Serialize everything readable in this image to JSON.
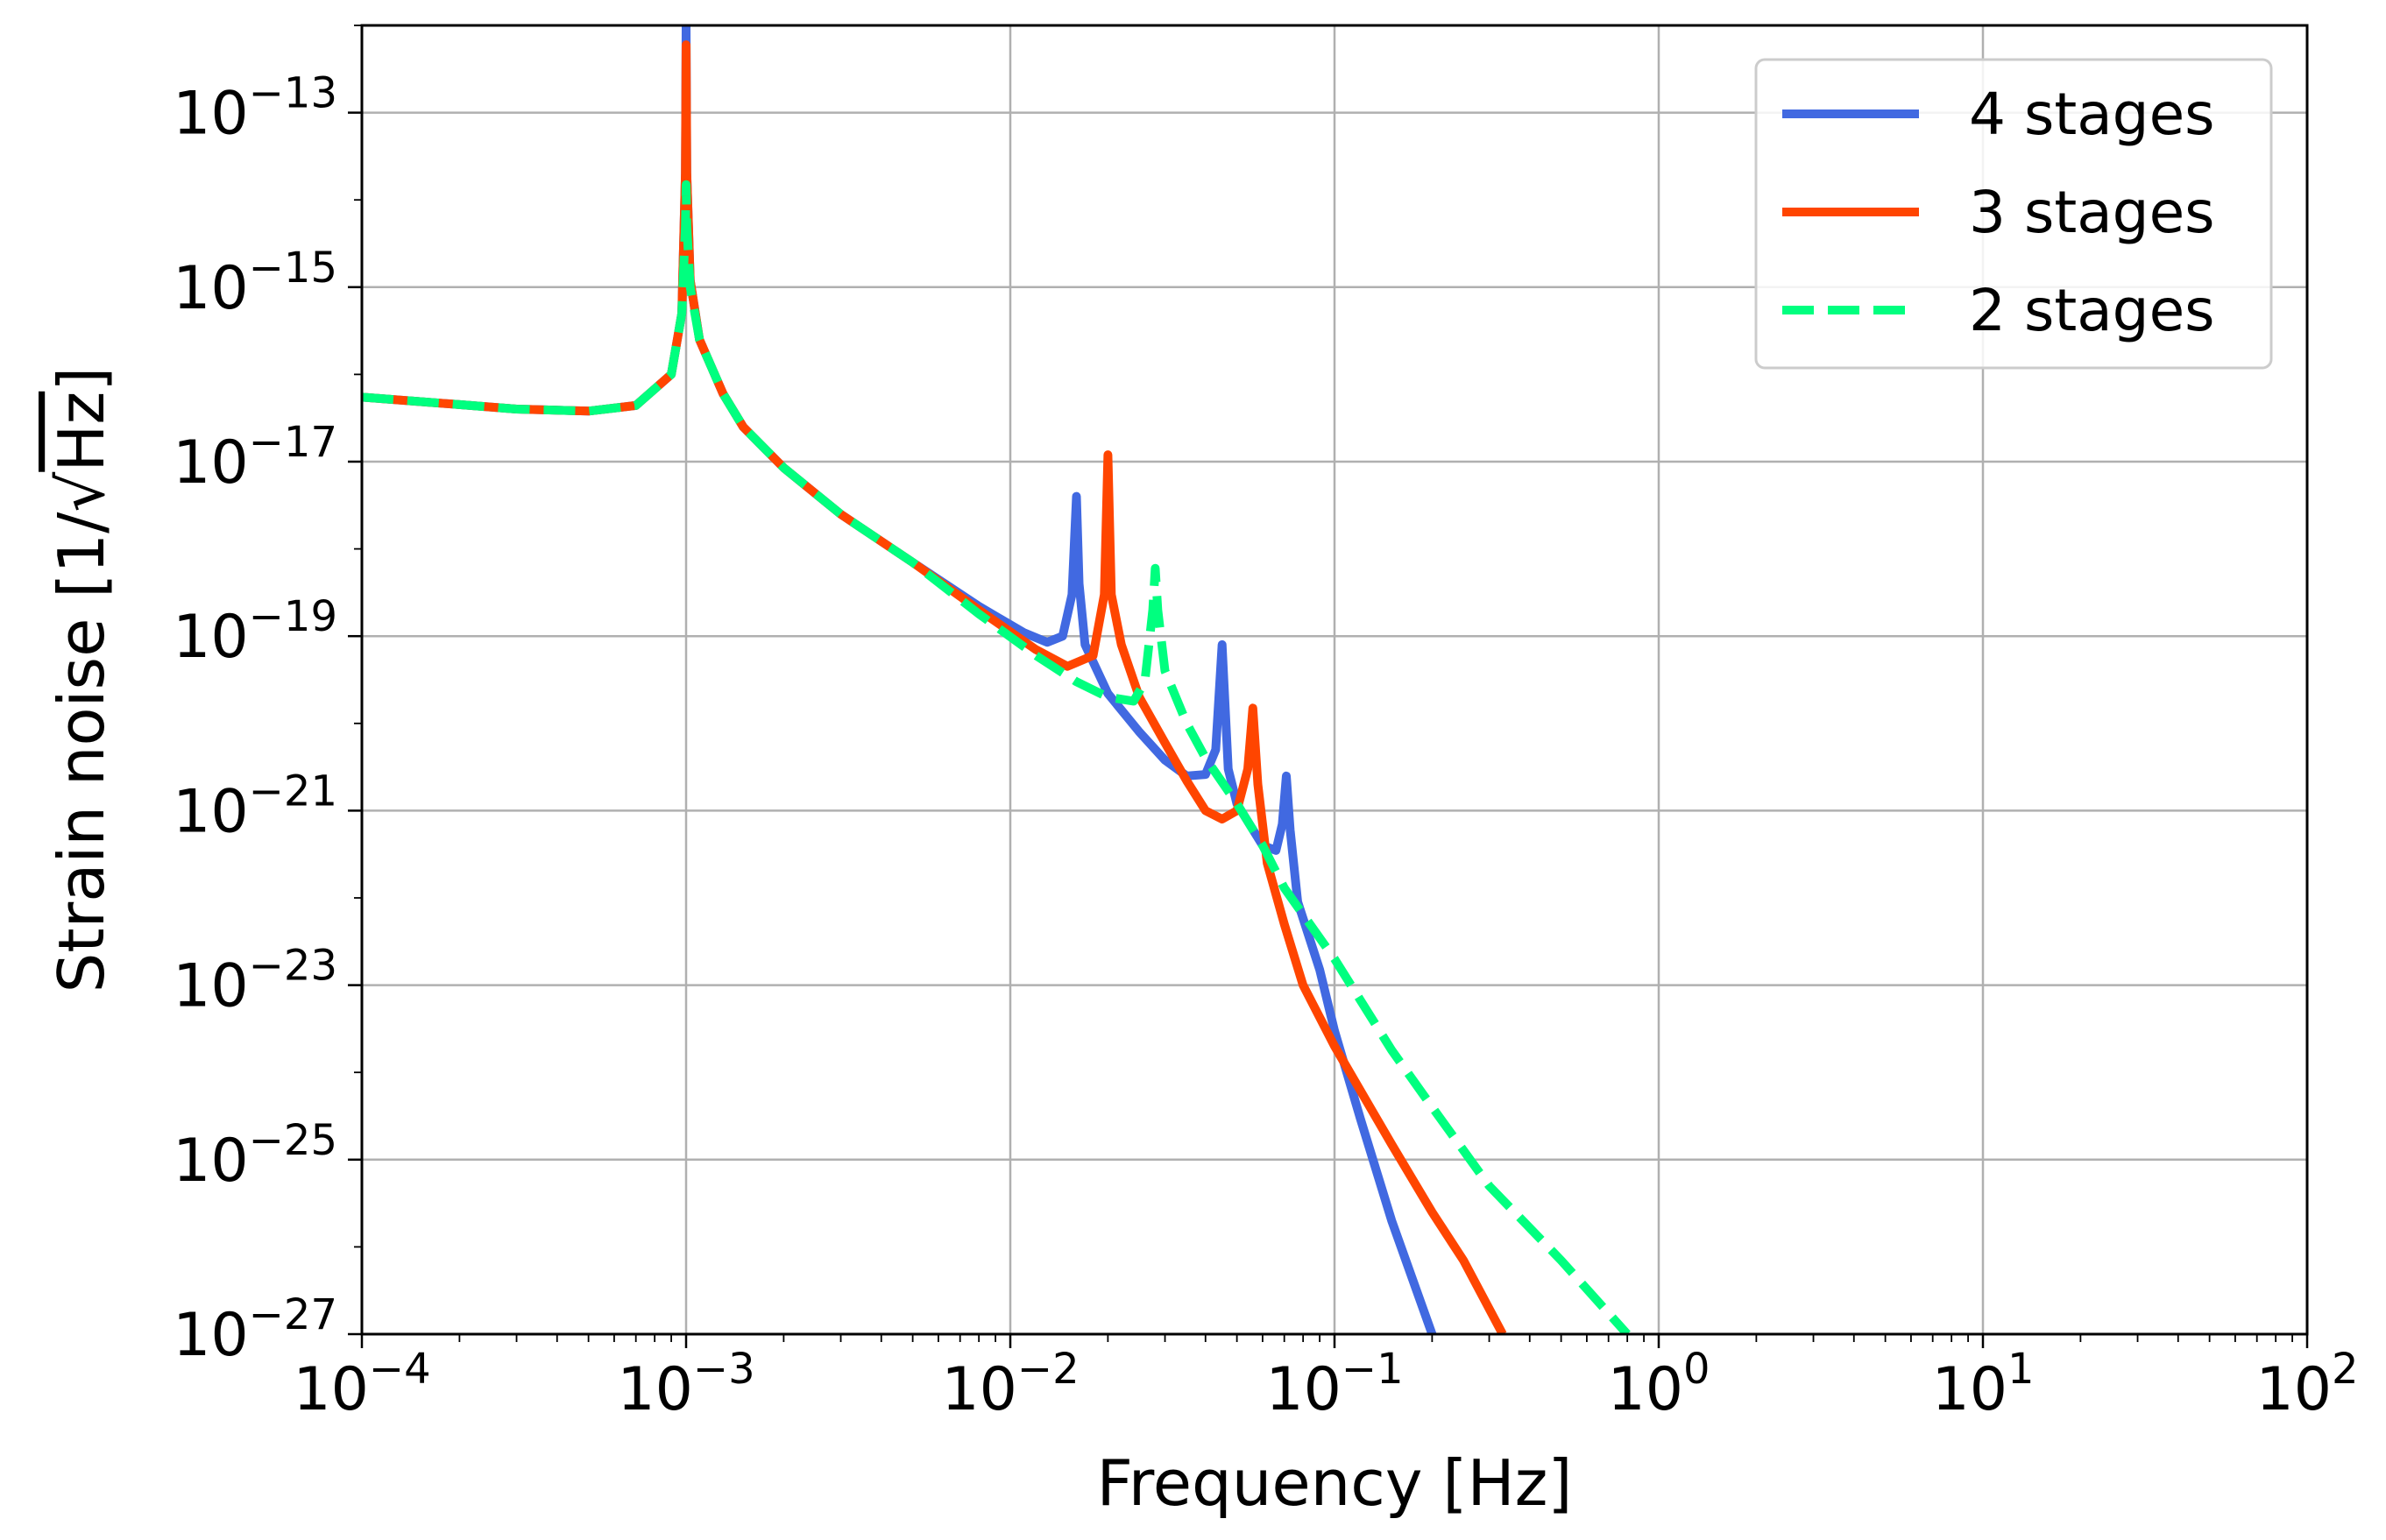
{
  "chart_data": {
    "type": "line",
    "xlabel": "Frequency [Hz]",
    "ylabel_prefix": "Strain noise [1/",
    "ylabel_radicand": "Hz",
    "ylabel_suffix": "]",
    "xscale": "log",
    "yscale": "log",
    "xlim": [
      0.0001,
      100
    ],
    "ylim": [
      1e-27,
      1e-12
    ],
    "grid": true,
    "legend_position": "top-right",
    "x_ticks": [
      {
        "base": "10",
        "exp": "−4",
        "value": 0.0001
      },
      {
        "base": "10",
        "exp": "−3",
        "value": 0.001
      },
      {
        "base": "10",
        "exp": "−2",
        "value": 0.01
      },
      {
        "base": "10",
        "exp": "−1",
        "value": 0.1
      },
      {
        "base": "10",
        "exp": "0",
        "value": 1
      },
      {
        "base": "10",
        "exp": "1",
        "value": 10
      },
      {
        "base": "10",
        "exp": "2",
        "value": 100
      }
    ],
    "y_ticks": [
      {
        "base": "10",
        "exp": "−13",
        "value": 1e-13
      },
      {
        "base": "10",
        "exp": "−15",
        "value": 1e-15
      },
      {
        "base": "10",
        "exp": "−17",
        "value": 1e-17
      },
      {
        "base": "10",
        "exp": "−19",
        "value": 1e-19
      },
      {
        "base": "10",
        "exp": "−21",
        "value": 1e-21
      },
      {
        "base": "10",
        "exp": "−23",
        "value": 1e-23
      },
      {
        "base": "10",
        "exp": "−25",
        "value": 1e-25
      },
      {
        "base": "10",
        "exp": "−27",
        "value": 1e-27
      }
    ],
    "series": [
      {
        "name": "4 stages",
        "color": "#4169e1",
        "dash": "solid",
        "points": [
          [
            0.0001,
            5.5e-17
          ],
          [
            0.0002,
            4.5e-17
          ],
          [
            0.0003,
            4e-17
          ],
          [
            0.0005,
            3.8e-17
          ],
          [
            0.0007,
            4.4e-17
          ],
          [
            0.0009,
            1e-16
          ],
          [
            0.00097,
            5e-16
          ],
          [
            0.000995,
            2e-14
          ],
          [
            0.001,
            1e-12
          ],
          [
            0.001005,
            2e-14
          ],
          [
            0.00103,
            1.2e-15
          ],
          [
            0.0011,
            2.5e-16
          ],
          [
            0.0013,
            6e-17
          ],
          [
            0.0015,
            2.5e-17
          ],
          [
            0.002,
            8.5e-18
          ],
          [
            0.003,
            2.5e-18
          ],
          [
            0.005,
            7e-19
          ],
          [
            0.008,
            2.2e-19
          ],
          [
            0.011,
            1.1e-19
          ],
          [
            0.013,
            8.5e-20
          ],
          [
            0.0145,
            1e-19
          ],
          [
            0.0155,
            3e-19
          ],
          [
            0.016,
            4e-18
          ],
          [
            0.0163,
            4e-19
          ],
          [
            0.017,
            8e-20
          ],
          [
            0.02,
            2.2e-20
          ],
          [
            0.025,
            8e-21
          ],
          [
            0.03,
            3.8e-21
          ],
          [
            0.035,
            2.5e-21
          ],
          [
            0.04,
            2.6e-21
          ],
          [
            0.043,
            5e-21
          ],
          [
            0.045,
            8e-20
          ],
          [
            0.047,
            3e-21
          ],
          [
            0.05,
            1.2e-21
          ],
          [
            0.06,
            4e-22
          ],
          [
            0.066,
            3.5e-22
          ],
          [
            0.069,
            7e-22
          ],
          [
            0.071,
            2.5e-21
          ],
          [
            0.073,
            6e-22
          ],
          [
            0.077,
            9e-23
          ],
          [
            0.09,
            1.5e-23
          ],
          [
            0.1,
            3e-24
          ],
          [
            0.12,
            3e-25
          ],
          [
            0.15,
            2e-26
          ],
          [
            0.2,
            1e-27
          ]
        ]
      },
      {
        "name": "3 stages",
        "color": "#ff4500",
        "dash": "solid",
        "points": [
          [
            0.0001,
            5.5e-17
          ],
          [
            0.0002,
            4.5e-17
          ],
          [
            0.0003,
            4e-17
          ],
          [
            0.0005,
            3.8e-17
          ],
          [
            0.0007,
            4.4e-17
          ],
          [
            0.0009,
            1e-16
          ],
          [
            0.00097,
            5e-16
          ],
          [
            0.000995,
            2e-14
          ],
          [
            0.001,
            6e-13
          ],
          [
            0.001005,
            2e-14
          ],
          [
            0.00103,
            1.2e-15
          ],
          [
            0.0011,
            2.5e-16
          ],
          [
            0.0013,
            6e-17
          ],
          [
            0.0015,
            2.5e-17
          ],
          [
            0.002,
            8.5e-18
          ],
          [
            0.003,
            2.5e-18
          ],
          [
            0.005,
            7e-19
          ],
          [
            0.008,
            2e-19
          ],
          [
            0.012,
            7e-20
          ],
          [
            0.015,
            4.5e-20
          ],
          [
            0.018,
            6e-20
          ],
          [
            0.0195,
            3e-19
          ],
          [
            0.02,
            1.2e-17
          ],
          [
            0.0205,
            3e-19
          ],
          [
            0.022,
            8e-20
          ],
          [
            0.025,
            2e-20
          ],
          [
            0.03,
            6e-21
          ],
          [
            0.035,
            2.2e-21
          ],
          [
            0.04,
            1e-21
          ],
          [
            0.045,
            8e-22
          ],
          [
            0.05,
            1e-21
          ],
          [
            0.054,
            3e-21
          ],
          [
            0.056,
            1.5e-20
          ],
          [
            0.058,
            2e-21
          ],
          [
            0.062,
            2.5e-22
          ],
          [
            0.07,
            5e-23
          ],
          [
            0.08,
            1e-23
          ],
          [
            0.1,
            2e-24
          ],
          [
            0.15,
            1.5e-25
          ],
          [
            0.2,
            2.5e-26
          ],
          [
            0.25,
            7e-27
          ],
          [
            0.33,
            1e-27
          ]
        ]
      },
      {
        "name": "2 stages",
        "color": "#00ff7f",
        "dash": "dashed",
        "points": [
          [
            0.0001,
            5.5e-17
          ],
          [
            0.0002,
            4.5e-17
          ],
          [
            0.0003,
            4e-17
          ],
          [
            0.0005,
            3.8e-17
          ],
          [
            0.0007,
            4.4e-17
          ],
          [
            0.0009,
            1e-16
          ],
          [
            0.00097,
            5e-16
          ],
          [
            0.000995,
            5e-15
          ],
          [
            0.001,
            1.5e-14
          ],
          [
            0.001005,
            5e-15
          ],
          [
            0.00103,
            1e-15
          ],
          [
            0.0011,
            2.5e-16
          ],
          [
            0.0013,
            6e-17
          ],
          [
            0.0015,
            2.5e-17
          ],
          [
            0.002,
            8.5e-18
          ],
          [
            0.003,
            2.5e-18
          ],
          [
            0.005,
            7e-19
          ],
          [
            0.008,
            1.8e-19
          ],
          [
            0.012,
            6e-20
          ],
          [
            0.016,
            3e-20
          ],
          [
            0.02,
            2e-20
          ],
          [
            0.024,
            1.8e-20
          ],
          [
            0.026,
            3e-20
          ],
          [
            0.0275,
            2e-19
          ],
          [
            0.028,
            6e-19
          ],
          [
            0.0285,
            2e-19
          ],
          [
            0.03,
            4e-20
          ],
          [
            0.035,
            1e-20
          ],
          [
            0.04,
            4e-21
          ],
          [
            0.05,
            1.2e-21
          ],
          [
            0.06,
            4e-22
          ],
          [
            0.07,
            1.3e-22
          ],
          [
            0.1,
            2e-23
          ],
          [
            0.15,
            1.8e-24
          ],
          [
            0.2,
            4e-25
          ],
          [
            0.3,
            5e-26
          ],
          [
            0.5,
            7e-27
          ],
          [
            0.8,
            1e-27
          ]
        ]
      }
    ]
  }
}
